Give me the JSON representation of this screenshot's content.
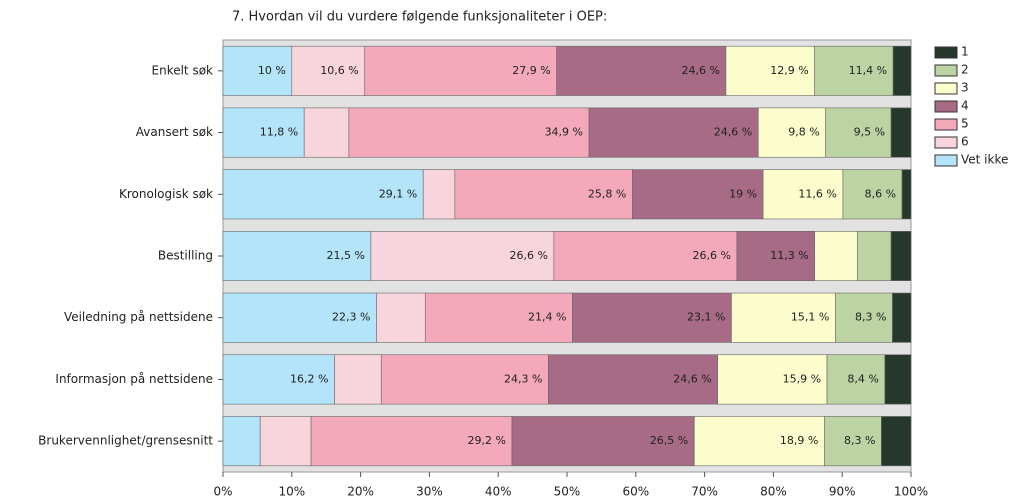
{
  "chart_data": {
    "type": "stacked-barh",
    "title": "7. Hvordan vil du vurdere følgende funksjonaliteter i OEP:",
    "categories": [
      "Enkelt søk",
      "Avansert søk",
      "Kronologisk søk",
      "Bestilling",
      "Veiledning på nettsidene",
      "Informasjon på nettsidene",
      "Brukervennlighet/grensesnitt"
    ],
    "series": [
      {
        "name": "1",
        "color": "#26372c",
        "values": [
          2.6,
          2.9,
          1.3,
          2.9,
          2.7,
          3.8,
          4.3
        ],
        "value_labels": [
          null,
          null,
          null,
          null,
          null,
          null,
          null
        ]
      },
      {
        "name": "2",
        "color": "#bcd3a3",
        "values": [
          11.4,
          9.5,
          8.6,
          4.9,
          8.3,
          8.4,
          8.3
        ],
        "value_labels": [
          "11,4 %",
          "9,5 %",
          "8,6 %",
          null,
          "8,3 %",
          "8,4 %",
          "8,3 %"
        ]
      },
      {
        "name": "3",
        "color": "#fcfdcc",
        "values": [
          12.9,
          9.8,
          11.6,
          6.2,
          15.1,
          15.9,
          18.9
        ],
        "value_labels": [
          "12,9 %",
          "9,8 %",
          "11,6 %",
          null,
          "15,1 %",
          "15,9 %",
          "18,9 %"
        ]
      },
      {
        "name": "4",
        "color": "#a86b86",
        "values": [
          24.6,
          24.6,
          19,
          11.3,
          23.1,
          24.6,
          26.5
        ],
        "value_labels": [
          "24,6 %",
          "24,6 %",
          "19 %",
          "11,3 %",
          "23,1 %",
          "24,6 %",
          "26,5 %"
        ]
      },
      {
        "name": "5",
        "color": "#f4a9ba",
        "values": [
          27.9,
          34.9,
          25.8,
          26.6,
          21.4,
          24.3,
          29.2
        ],
        "value_labels": [
          "27,9 %",
          "34,9 %",
          "25,8 %",
          "26,6 %",
          "21,4 %",
          "24,3 %",
          "29,2 %"
        ]
      },
      {
        "name": "6",
        "color": "#f8d4dd",
        "values": [
          10.6,
          6.5,
          4.6,
          26.6,
          7.1,
          6.8,
          7.4
        ],
        "value_labels": [
          "10,6 %",
          null,
          null,
          "26,6 %",
          null,
          null,
          null
        ]
      },
      {
        "name": "Vet ikke",
        "color": "#b3e4f9",
        "values": [
          10,
          11.8,
          29.1,
          21.5,
          22.3,
          16.2,
          5.4
        ],
        "value_labels": [
          "10 %",
          "11,8 %",
          "29,1 %",
          "21,5 %",
          "22,3 %",
          "16,2 %",
          null
        ]
      }
    ],
    "xlim": [
      0,
      100
    ],
    "xticks": [
      {
        "value": 0,
        "label": "0%"
      },
      {
        "value": 10,
        "label": "10%"
      },
      {
        "value": 20,
        "label": "20%"
      },
      {
        "value": 30,
        "label": "30%"
      },
      {
        "value": 40,
        "label": "40%"
      },
      {
        "value": 50,
        "label": "50%"
      },
      {
        "value": 60,
        "label": "60%"
      },
      {
        "value": 70,
        "label": "70%"
      },
      {
        "value": 80,
        "label": "80%"
      },
      {
        "value": 90,
        "label": "90%"
      },
      {
        "value": 100,
        "label": "100%"
      }
    ],
    "legend": "right"
  }
}
